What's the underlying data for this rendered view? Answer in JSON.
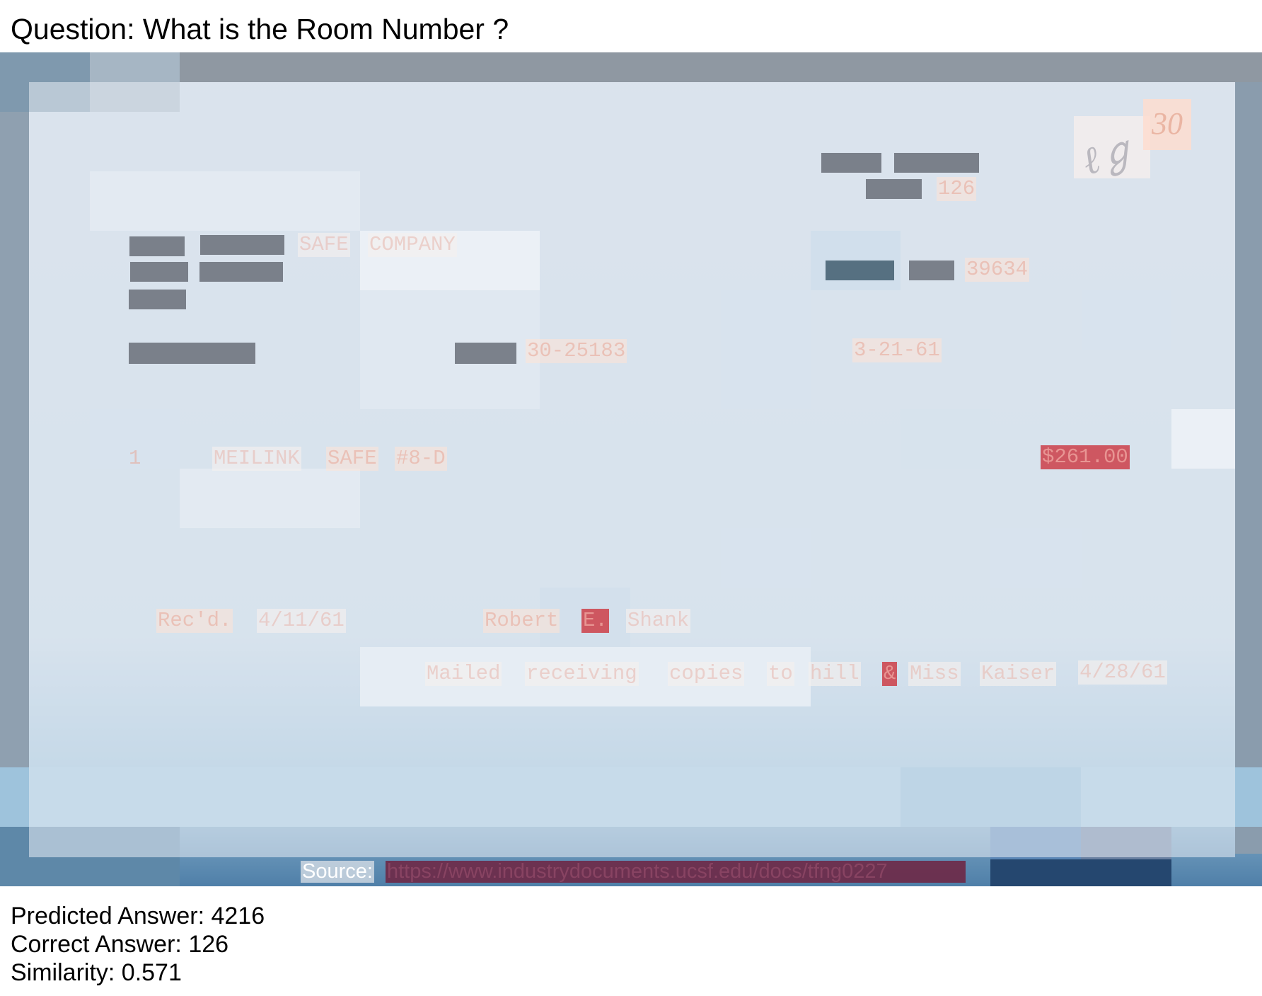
{
  "question": {
    "label": "Question:",
    "text": "What is the Room Number ?"
  },
  "document": {
    "room_value": "126",
    "company": [
      "SAFE",
      "COMPANY"
    ],
    "order_number": "39634",
    "account_number": "30-25183",
    "date": "3-21-61",
    "line_item": {
      "quantity": "1",
      "description": [
        "MEILINK",
        "SAFE",
        "#8-D"
      ],
      "amount": "$261.00"
    },
    "received": {
      "label": "Rec'd.",
      "date": "4/11/61",
      "name": [
        "Robert",
        "E.",
        "Shank"
      ]
    },
    "mailed_note": [
      "Mailed",
      "receiving",
      "copies",
      "to",
      "hill",
      "&",
      "Miss",
      "Kaiser",
      "4/28/61"
    ],
    "corner_mark": "30",
    "source": {
      "label": "Source:",
      "url": "https://www.industrydocuments.ucsf.edu/docs/tfng0227"
    }
  },
  "results": {
    "predicted_label": "Predicted Answer:",
    "predicted_value": "4216",
    "correct_label": "Correct Answer:",
    "correct_value": "126",
    "similarity_label": "Similarity:",
    "similarity_value": "0.571"
  },
  "colors": {
    "highlight_strong": "#cd3e48",
    "highlight_light": "#ffe4d6",
    "mask": "#6c727c",
    "source_bar": "#6e2846"
  }
}
